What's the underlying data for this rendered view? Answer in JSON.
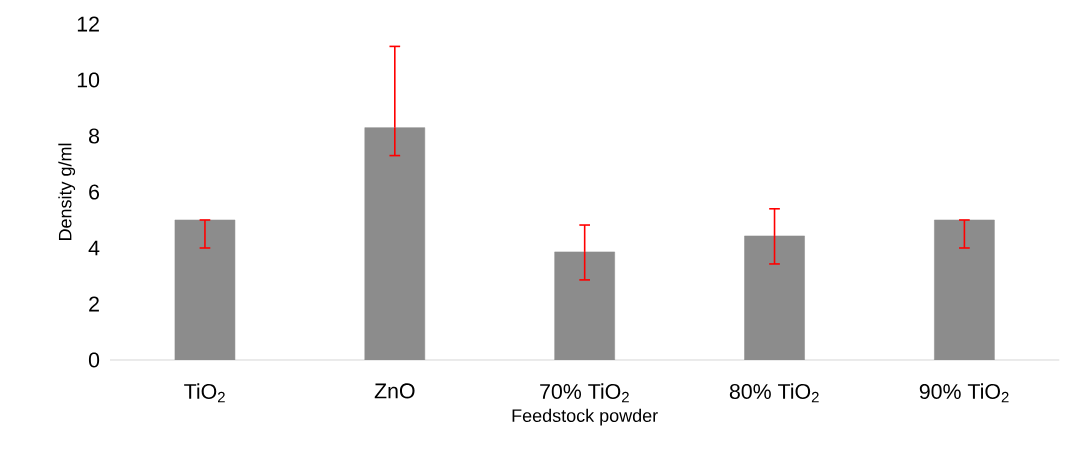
{
  "chart_data": {
    "type": "bar",
    "xlabel": "Feedstock powder",
    "ylabel": "Density  g/ml",
    "categories": [
      "TiO$_{2}$",
      "ZnO",
      "70% TiO$_{2}$",
      "80% TiO$_{2}$",
      "90% TiO$_{2}$"
    ],
    "values": [
      5.0,
      8.3,
      3.86,
      4.43,
      5.0
    ],
    "errors": [
      [
        4.0,
        5.0
      ],
      [
        7.3,
        11.2
      ],
      [
        2.86,
        4.82
      ],
      [
        3.43,
        5.4
      ],
      [
        4.0,
        5.0
      ]
    ],
    "color": "#8c8c8c",
    "ylim": [
      0,
      12
    ],
    "yticks": [
      0,
      2,
      4,
      6,
      8,
      10,
      12
    ]
  }
}
